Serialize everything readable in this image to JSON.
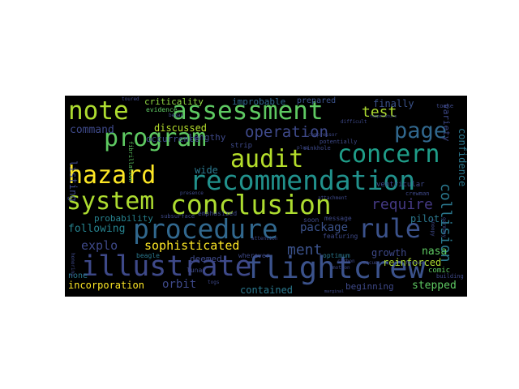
{
  "word_cloud": {
    "background": "#000000",
    "words": [
      {
        "text": "flightcrew",
        "color": "#3b528b"
      },
      {
        "text": "illustrate",
        "color": "#3e4989"
      },
      {
        "text": "recommendation",
        "color": "#21918c"
      },
      {
        "text": "procedure",
        "color": "#31688e"
      },
      {
        "text": "conclusion",
        "color": "#addc30"
      },
      {
        "text": "assessment",
        "color": "#5ec962"
      },
      {
        "text": "system",
        "color": "#addc30"
      },
      {
        "text": "program",
        "color": "#5ec962"
      },
      {
        "text": "hazard",
        "color": "#fde725"
      },
      {
        "text": "audit",
        "color": "#b5de2b"
      },
      {
        "text": "concern",
        "color": "#1f9e89"
      },
      {
        "text": "rule",
        "color": "#3b528b"
      },
      {
        "text": "note",
        "color": "#addc30"
      },
      {
        "text": "page",
        "color": "#31688e"
      },
      {
        "text": "test",
        "color": "#addc30"
      },
      {
        "text": "operation",
        "color": "#3e4989"
      },
      {
        "text": "require",
        "color": "#443983"
      },
      {
        "text": "sophisticated",
        "color": "#fde725"
      },
      {
        "text": "collision",
        "color": "#2a788e"
      },
      {
        "text": "ment",
        "color": "#3b528b"
      },
      {
        "text": "package",
        "color": "#3b528b"
      },
      {
        "text": "command",
        "color": "#3e4989"
      },
      {
        "text": "discussed",
        "color": "#b5de2b"
      },
      {
        "text": "orbit",
        "color": "#3e4989"
      },
      {
        "text": "explo",
        "color": "#3e4989"
      },
      {
        "text": "following",
        "color": "#26828e"
      },
      {
        "text": "incorporation",
        "color": "#fde725"
      },
      {
        "text": "contained",
        "color": "#2a788e"
      },
      {
        "text": "beginning",
        "color": "#3e4989"
      },
      {
        "text": "stepped",
        "color": "#5ec962"
      },
      {
        "text": "pilot",
        "color": "#2a788e"
      },
      {
        "text": "growth",
        "color": "#3e4989"
      },
      {
        "text": "nasa",
        "color": "#5ec962"
      },
      {
        "text": "reinforced",
        "color": "#addc30"
      },
      {
        "text": "criticality",
        "color": "#90d743"
      },
      {
        "text": "improbable",
        "color": "#31688e"
      },
      {
        "text": "prepared",
        "color": "#3b528b"
      },
      {
        "text": "finally",
        "color": "#3b528b"
      },
      {
        "text": "lengthy",
        "color": "#3e4989"
      },
      {
        "text": "occurrence",
        "color": "#3e4989"
      },
      {
        "text": "probability",
        "color": "#26828e"
      },
      {
        "text": "wide",
        "color": "#2a788e"
      },
      {
        "text": "listing",
        "color": "#3e4989"
      },
      {
        "text": "variety",
        "color": "#3e4989"
      },
      {
        "text": "confidence",
        "color": "#2a788e"
      },
      {
        "text": "deemed",
        "color": "#3e4989"
      },
      {
        "text": "none",
        "color": "#2a788e"
      },
      {
        "text": "evidence",
        "color": "#5ec962"
      },
      {
        "text": "comic",
        "color": "#5ec962"
      },
      {
        "text": "strip",
        "color": "#3e4989"
      },
      {
        "text": "emphasized",
        "color": "#3e4989"
      },
      {
        "text": "ventricular",
        "color": "#3e4989"
      },
      {
        "text": "message",
        "color": "#3e4989"
      },
      {
        "text": "soon",
        "color": "#3e4989"
      },
      {
        "text": "featuring",
        "color": "#3e4989"
      },
      {
        "text": "optimum",
        "color": "#2a788e"
      },
      {
        "text": "wherever",
        "color": "#3e4989"
      },
      {
        "text": "beagle",
        "color": "#2a788e"
      },
      {
        "text": "lunar",
        "color": "#3e4989"
      },
      {
        "text": "subsurface",
        "color": "#3e4989"
      },
      {
        "text": "fibrillation",
        "color": "#5ec962"
      },
      {
        "text": "sinkhole",
        "color": "#3e4989"
      },
      {
        "text": "toured",
        "color": "#3e4989"
      },
      {
        "text": "potentially",
        "color": "#3e4989"
      },
      {
        "text": "crewman",
        "color": "#3e4989"
      },
      {
        "text": "presence",
        "color": "#3e4989"
      },
      {
        "text": "building",
        "color": "#3e4989"
      },
      {
        "text": "germany",
        "color": "#3e4989"
      },
      {
        "text": "tooke",
        "color": "#3e4989"
      },
      {
        "text": "snoopy",
        "color": "#3e4989"
      },
      {
        "text": "honoring",
        "color": "#3e4989"
      },
      {
        "text": "togs",
        "color": "#3e4989"
      },
      {
        "text": "began",
        "color": "#3e4989"
      },
      {
        "text": "rescue",
        "color": "#3e4989"
      },
      {
        "text": "marginal",
        "color": "#3e4989"
      },
      {
        "text": "difficult",
        "color": "#3e4989"
      },
      {
        "text": "attachment",
        "color": "#3e4989"
      },
      {
        "text": "attention",
        "color": "#3e4989"
      },
      {
        "text": "temperature",
        "color": "#3e4989"
      },
      {
        "text": "motion",
        "color": "#3e4989"
      },
      {
        "text": "compressor",
        "color": "#3e4989"
      },
      {
        "text": "carbon",
        "color": "#3e4989"
      },
      {
        "text": "forever",
        "color": "#3e4989"
      },
      {
        "text": "plus",
        "color": "#3e4989"
      }
    ]
  }
}
